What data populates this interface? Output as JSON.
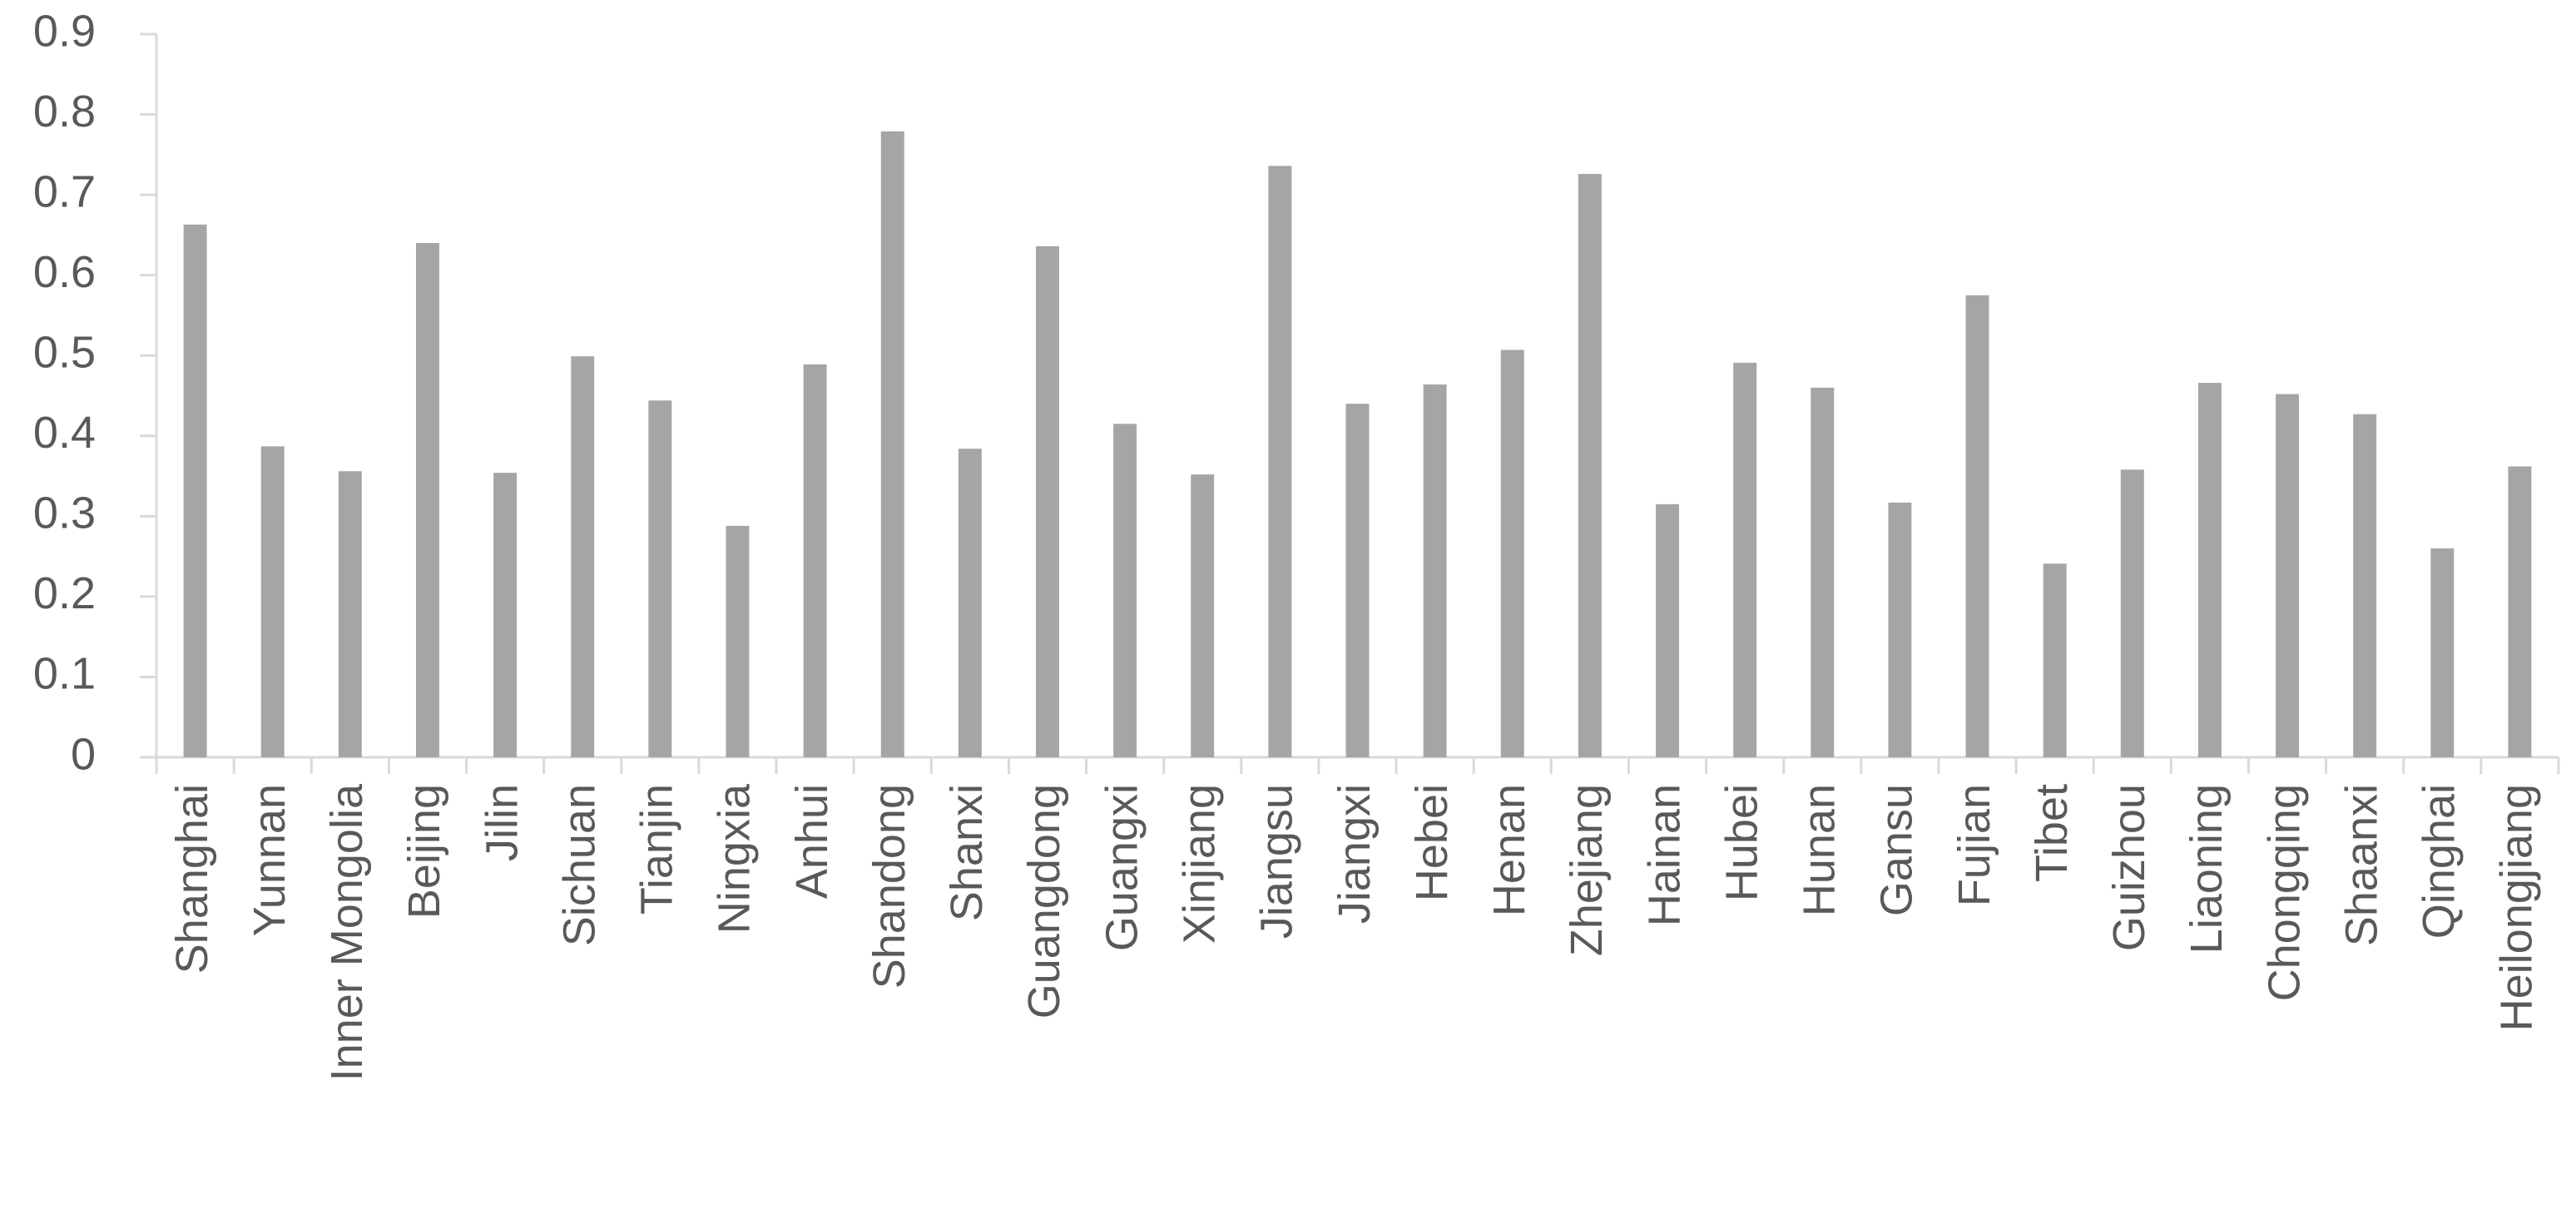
{
  "chart_data": {
    "type": "bar",
    "categories": [
      "Shanghai",
      "Yunnan",
      "Inner Mongolia",
      "Beijing",
      "Jilin",
      "Sichuan",
      "Tianjin",
      "Ningxia",
      "Anhui",
      "Shandong",
      "Shanxi",
      "Guangdong",
      "Guangxi",
      "Xinjiang",
      "Jiangsu",
      "Jiangxi",
      "Hebei",
      "Henan",
      "Zhejiang",
      "Hainan",
      "Hubei",
      "Hunan",
      "Gansu",
      "Fujian",
      "Tibet",
      "Guizhou",
      "Liaoning",
      "Chongqing",
      "Shaanxi",
      "Qinghai",
      "Heilongjiang"
    ],
    "values": [
      0.663,
      0.387,
      0.356,
      0.64,
      0.354,
      0.499,
      0.444,
      0.288,
      0.489,
      0.779,
      0.384,
      0.636,
      0.415,
      0.352,
      0.736,
      0.44,
      0.464,
      0.507,
      0.726,
      0.315,
      0.491,
      0.46,
      0.317,
      0.575,
      0.241,
      0.358,
      0.466,
      0.452,
      0.427,
      0.26,
      0.362
    ],
    "color": "#a5a5a5",
    "ylim": [
      0,
      0.9
    ],
    "yticks": [
      0,
      0.1,
      0.2,
      0.3,
      0.4,
      0.5,
      0.6,
      0.7,
      0.8,
      0.9
    ],
    "grid": false
  }
}
